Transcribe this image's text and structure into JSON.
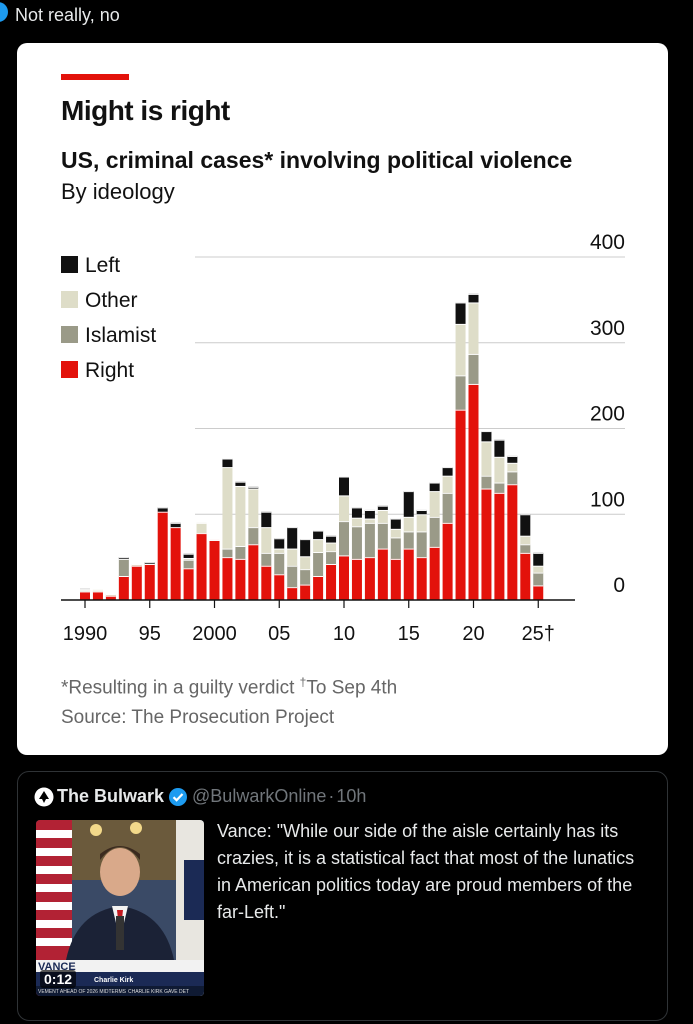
{
  "header": {
    "text": "Not really, no"
  },
  "article": {
    "title": "Might is right",
    "subtitle": "US, criminal cases* involving political violence",
    "subsubtitle": "By ideology",
    "footnote_main": "*Resulting in a guilty verdict ",
    "footnote_dagger_mark": "†",
    "footnote_dagger_text": "To Sep 4th",
    "source": "Source: The Prosecution Project"
  },
  "chart_data": {
    "type": "bar",
    "stacked": true,
    "title": "US, criminal cases* involving political violence",
    "subtitle": "By ideology",
    "ylim": [
      0,
      400
    ],
    "yticks": [
      "400",
      "300",
      "200",
      "100",
      "0"
    ],
    "ytick_values": [
      400,
      300,
      200,
      100,
      0
    ],
    "xtick_labels": [
      "1990",
      "95",
      "2000",
      "05",
      "10",
      "15",
      "20",
      "25†"
    ],
    "xtick_years": [
      1990,
      1995,
      2000,
      2005,
      2010,
      2015,
      2020,
      2025
    ],
    "legend_position": "top-left",
    "categories": [
      1990,
      1991,
      1992,
      1993,
      1994,
      1995,
      1996,
      1997,
      1998,
      1999,
      2000,
      2001,
      2002,
      2003,
      2004,
      2005,
      2006,
      2007,
      2008,
      2009,
      2010,
      2011,
      2012,
      2013,
      2014,
      2015,
      2016,
      2017,
      2018,
      2019,
      2020,
      2021,
      2022,
      2023,
      2024,
      2025
    ],
    "series": [
      {
        "name": "Right",
        "color": "#e3120b",
        "values": [
          10,
          10,
          5,
          28,
          40,
          42,
          103,
          85,
          37,
          78,
          70,
          50,
          48,
          65,
          40,
          30,
          15,
          18,
          28,
          42,
          52,
          48,
          50,
          60,
          48,
          60,
          50,
          62,
          90,
          222,
          252,
          130,
          125,
          135,
          55,
          17
        ]
      },
      {
        "name": "Islamist",
        "color": "#9a9a88",
        "values": [
          0,
          0,
          0,
          20,
          0,
          0,
          0,
          0,
          10,
          0,
          0,
          10,
          15,
          20,
          15,
          25,
          25,
          18,
          28,
          15,
          40,
          38,
          40,
          30,
          25,
          20,
          30,
          35,
          35,
          40,
          35,
          15,
          12,
          15,
          10,
          15
        ]
      },
      {
        "name": "Other",
        "color": "#deddc8",
        "values": [
          2,
          2,
          2,
          0,
          2,
          0,
          0,
          0,
          2,
          12,
          0,
          95,
          70,
          45,
          30,
          5,
          20,
          15,
          15,
          10,
          30,
          10,
          5,
          15,
          10,
          17,
          20,
          30,
          20,
          60,
          60,
          40,
          30,
          10,
          10,
          8
        ]
      },
      {
        "name": "Left",
        "color": "#111111",
        "values": [
          1,
          0,
          0,
          2,
          0,
          2,
          5,
          5,
          5,
          0,
          0,
          10,
          5,
          2,
          18,
          12,
          25,
          20,
          10,
          8,
          22,
          12,
          10,
          5,
          12,
          30,
          5,
          10,
          10,
          25,
          10,
          12,
          20,
          8,
          25,
          15
        ]
      }
    ],
    "legend": [
      "Left",
      "Other",
      "Islamist",
      "Right"
    ]
  },
  "tweet": {
    "account_name": "The Bulwark",
    "handle": "@BulwarkOnline",
    "separator": "·",
    "time": "10h",
    "text": "Vance: \"While our side of the aisle certainly has its crazies, it is a statistical fact that most of the lunatics in American politics today are proud members of the far-Left.\"",
    "video": {
      "duration": "0:12",
      "lower_third_name": "VANCE",
      "lower_third_sub": "Charlie Kirk",
      "ticker_left": "VEMENT AHEAD OF 2026 MIDTERMS",
      "ticker_right": "CHARLIE KIRK GAVE DET"
    }
  }
}
